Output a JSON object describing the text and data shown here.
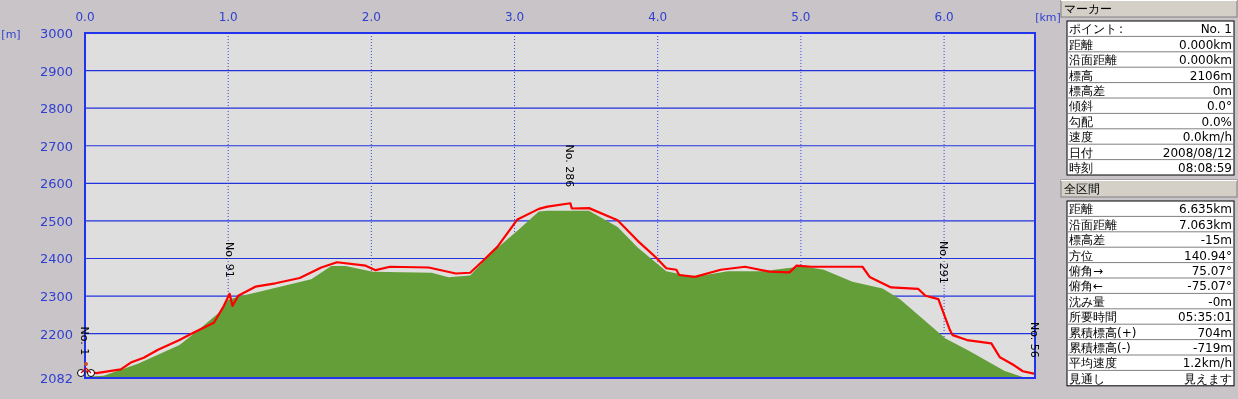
{
  "chart_data": [
    {
      "type": "area",
      "xlabel": "[km]",
      "ylabel": "[m]",
      "xlim": [
        0,
        6.635
      ],
      "xticks": [
        {
          "value": 0,
          "label": "0.0"
        },
        {
          "value": 1,
          "label": "1.0"
        },
        {
          "value": 2,
          "label": "2.0"
        },
        {
          "value": 3,
          "label": "3.0"
        },
        {
          "value": 4,
          "label": "4.0"
        },
        {
          "value": 5,
          "label": "5.0"
        },
        {
          "value": 6,
          "label": "6.0"
        }
      ],
      "ylim": [
        2082,
        3000
      ],
      "yticks": [
        2082,
        2200,
        2300,
        2400,
        2500,
        2600,
        2700,
        2800,
        2900,
        3000
      ],
      "grid": true,
      "series": [
        {
          "type": "area",
          "color": "#649e38",
          "x": [
            0,
            0.13,
            0.37,
            0.66,
            0.76,
            0.95,
            1.0,
            1.09,
            1.58,
            1.72,
            1.82,
            2.01,
            2.42,
            2.54,
            2.69,
            2.83,
            3.02,
            3.17,
            3.23,
            3.52,
            3.72,
            3.86,
            4.06,
            4.25,
            4.49,
            4.73,
            4.9,
            5.02,
            5.16,
            5.36,
            5.57,
            5.69,
            6.01,
            6.17,
            6.42,
            6.56,
            6.635
          ],
          "values": [
            2085,
            2088,
            2120,
            2170,
            2200,
            2260,
            2290,
            2300,
            2345,
            2380,
            2380,
            2365,
            2362,
            2350,
            2355,
            2411,
            2474,
            2525,
            2527,
            2527,
            2484,
            2429,
            2366,
            2351,
            2366,
            2366,
            2374,
            2379,
            2370,
            2338,
            2320,
            2292,
            2187,
            2155,
            2101,
            2083,
            2082
          ]
        },
        {
          "type": "line",
          "color": "#ff0000",
          "x": [
            0,
            0.08,
            0.25,
            0.32,
            0.41,
            0.51,
            0.66,
            0.76,
            0.9,
            0.97,
            1.01,
            1.03,
            1.07,
            1.19,
            1.33,
            1.5,
            1.65,
            1.76,
            1.96,
            2.03,
            2.13,
            2.4,
            2.59,
            2.69,
            2.78,
            2.88,
            3.02,
            3.17,
            3.23,
            3.39,
            3.4,
            3.52,
            3.72,
            3.86,
            3.99,
            4.06,
            4.13,
            4.15,
            4.26,
            4.44,
            4.61,
            4.78,
            4.92,
            4.97,
            5.07,
            5.43,
            5.48,
            5.63,
            5.82,
            5.87,
            5.96,
            6.04,
            6.06,
            6.16,
            6.33,
            6.39,
            6.48,
            6.55,
            6.635
          ],
          "values": [
            2100,
            2095,
            2105,
            2123,
            2136,
            2157,
            2183,
            2203,
            2229,
            2274,
            2306,
            2274,
            2301,
            2325,
            2334,
            2348,
            2376,
            2390,
            2381,
            2369,
            2378,
            2376,
            2360,
            2362,
            2394,
            2431,
            2504,
            2532,
            2538,
            2547,
            2533,
            2534,
            2502,
            2447,
            2402,
            2374,
            2370,
            2356,
            2351,
            2370,
            2378,
            2365,
            2363,
            2381,
            2378,
            2378,
            2351,
            2323,
            2319,
            2301,
            2292,
            2210,
            2196,
            2183,
            2174,
            2137,
            2118,
            2100,
            2093
          ]
        }
      ],
      "annotations": [
        {
          "text": "No. 1",
          "x": 0,
          "y": 2100
        },
        {
          "text": "No. 91",
          "x": 1.01,
          "y": 2306
        },
        {
          "text": "No. 286",
          "x": 3.39,
          "y": 2547
        },
        {
          "text": "No. 291",
          "x": 6.0,
          "y": 2290
        },
        {
          "text": "No. 56",
          "x": 6.635,
          "y": 2093
        }
      ]
    },
    {
      "type": "other",
      "title": "マーカー",
      "annotations": [
        ":"
      ],
      "categories": [
        "ポイント",
        "距離",
        "沿面距離",
        "標高",
        "標高差",
        "傾斜",
        "勾配",
        "速度",
        "日付",
        "時刻"
      ],
      "value_labels": [
        "No. 1",
        "0.000km",
        "0.000km",
        "2106m",
        "0m",
        "0.0°",
        "0.0%",
        "0.0km/h",
        "2008/08/12",
        "08:08:59"
      ]
    },
    {
      "type": "other",
      "title": "全区間",
      "categories": [
        "距離",
        "沿面距離",
        "標高差",
        "方位",
        "俯角→",
        "俯角←",
        "沈み量",
        "所要時間",
        "累積標高(+)",
        "累積標高(-)",
        "平均速度",
        "見通し"
      ],
      "value_labels": [
        "6.635km",
        "7.063km",
        "-15m",
        "140.94°",
        "75.07°",
        "-75.07°",
        "-0m",
        "05:35:01",
        "704m",
        "-719m",
        "1.2km/h",
        "見えます"
      ]
    }
  ]
}
